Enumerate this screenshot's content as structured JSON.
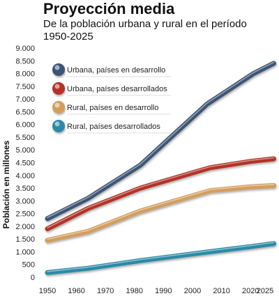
{
  "title": "Proyección media",
  "subtitle": "De la población urbana y rural en el período 1950-2025",
  "chart_data": {
    "type": "line",
    "ylabel": "Población en millones",
    "xlabel": "",
    "ylim": [
      0,
      9000
    ],
    "yticks": [
      0,
      500,
      1000,
      1500,
      2000,
      2500,
      3000,
      3500,
      4000,
      4500,
      5000,
      5500,
      6000,
      6500,
      7000,
      7500,
      8000,
      8500,
      9000
    ],
    "ytick_labels": [
      "0",
      "500",
      "1.000",
      "1.500",
      "2.000",
      "2.500",
      "3.000",
      "3.500",
      "4.000",
      "4.500",
      "5.000",
      "5.500",
      "6.000",
      "6.500",
      "7.000",
      "7.500",
      "8.000",
      "8.500",
      "9.000"
    ],
    "xticks": [
      1950,
      1960,
      1970,
      1980,
      1990,
      2000,
      2010,
      2020,
      2025
    ],
    "xtick_labels": [
      "1950",
      "1960",
      "1970",
      "1980",
      "1990",
      "2000",
      "2010",
      "2020",
      "2025"
    ],
    "grid": false,
    "legend_position": "top-left",
    "series": [
      {
        "name": "Urbana, países en desarrollo",
        "color": "#3d5575",
        "x": [
          1950,
          1964,
          1982,
          2005,
          2021,
          2028
        ],
        "y": [
          2300,
          3100,
          4400,
          6800,
          8000,
          8400
        ]
      },
      {
        "name": "Urbana, países desarrollados",
        "color": "#b33226",
        "x": [
          1950,
          1964,
          1982,
          2006,
          2020,
          2028
        ],
        "y": [
          1900,
          2700,
          3500,
          4300,
          4550,
          4650
        ]
      },
      {
        "name": "Rural, países en desarrollo",
        "color": "#d39d5c",
        "x": [
          1950,
          1964,
          1982,
          2006,
          2020,
          2028
        ],
        "y": [
          1450,
          1800,
          2600,
          3400,
          3550,
          3600
        ]
      },
      {
        "name": "Rural, países desarrollados",
        "color": "#2c8aa6",
        "x": [
          1950,
          1964,
          1982,
          2006,
          2020,
          2028
        ],
        "y": [
          180,
          350,
          650,
          1000,
          1200,
          1320
        ]
      }
    ]
  }
}
